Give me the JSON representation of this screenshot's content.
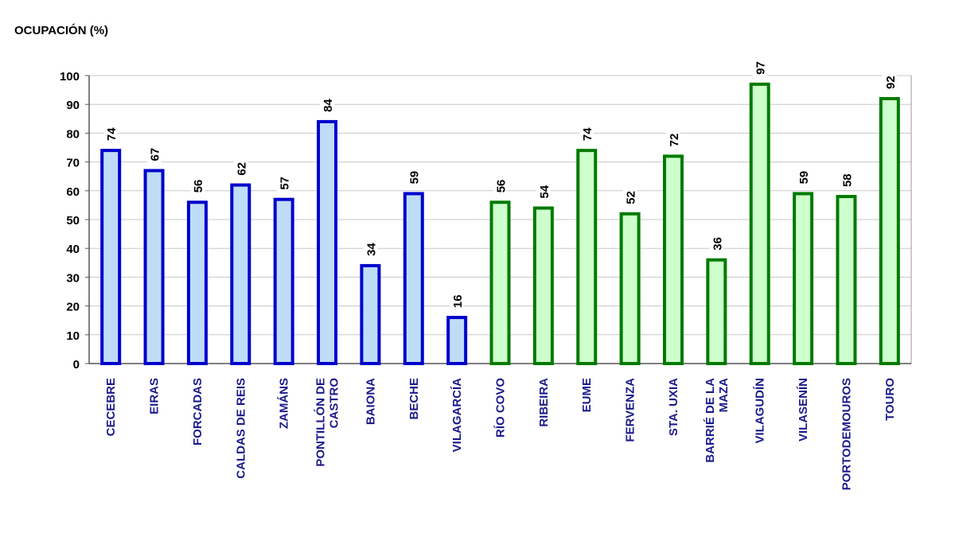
{
  "chart_data": {
    "type": "bar",
    "title": "OCUPACIÓN (%)",
    "categories": [
      "CECEBRE",
      "EIRAS",
      "FORCADAS",
      "CALDAS DE REIS",
      "ZAMÁNS",
      "PONTILLÓN DE CASTRO",
      "BAIONA",
      "BECHE",
      "VILAGARCÍA",
      "RÍO COVO",
      "RIBEIRA",
      "EUME",
      "FERVENZA",
      "STA. UXIA",
      "BARRIÉ DE LA MAZA",
      "VILAGUDÍN",
      "VILASENÍN",
      "PORTODEMOUROS",
      "TOURO"
    ],
    "values": [
      74,
      67,
      56,
      62,
      57,
      84,
      34,
      59,
      16,
      56,
      54,
      74,
      52,
      72,
      36,
      97,
      59,
      58,
      92
    ],
    "colors": [
      "#bfdcf7",
      "#bfdcf7",
      "#bfdcf7",
      "#bfdcf7",
      "#bfdcf7",
      "#bfdcf7",
      "#bfdcf7",
      "#bfdcf7",
      "#bfdcf7",
      "#ccffcc",
      "#ccffcc",
      "#ccffcc",
      "#ccffcc",
      "#ccffcc",
      "#ccffcc",
      "#ccffcc",
      "#ccffcc",
      "#ccffcc",
      "#ccffcc"
    ],
    "edge_colors": [
      "#0000cc",
      "#0000cc",
      "#0000cc",
      "#0000cc",
      "#0000cc",
      "#0000cc",
      "#0000cc",
      "#0000cc",
      "#0000cc",
      "#007a00",
      "#007a00",
      "#007a00",
      "#007a00",
      "#007a00",
      "#007a00",
      "#007a00",
      "#007a00",
      "#007a00",
      "#007a00"
    ],
    "ylim": [
      0,
      100
    ],
    "yticks": [
      0,
      10,
      20,
      30,
      40,
      50,
      60,
      70,
      80,
      90,
      100
    ],
    "grid": true
  }
}
